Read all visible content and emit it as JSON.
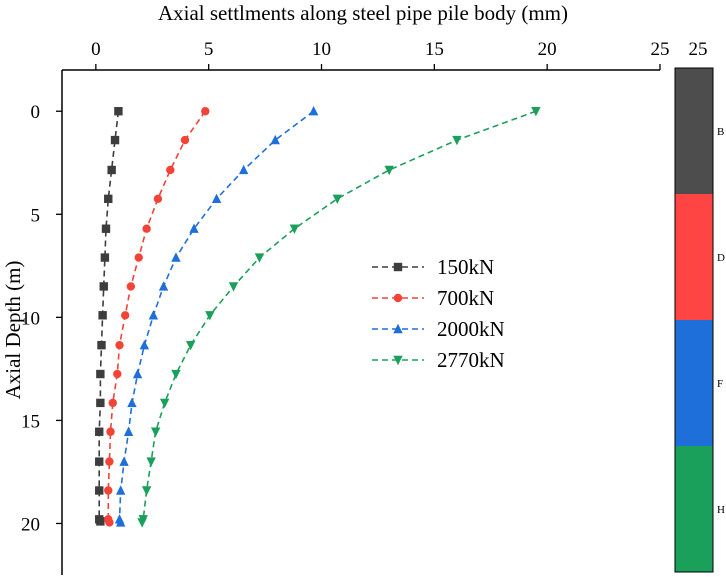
{
  "chart_data": {
    "type": "line",
    "title": "Axial settlments along steel pipe pile body (mm)",
    "xlabel": "Axial settlments along steel pipe pile body (mm)",
    "ylabel": "Axial Depth (m)",
    "x_axis_position": "top",
    "y_axis_inverted": true,
    "xlim": [
      -1.5,
      25
    ],
    "ylim": [
      22.5,
      -2
    ],
    "x_ticks": [
      0,
      5,
      10,
      15,
      20,
      25
    ],
    "y_ticks": [
      0,
      5,
      10,
      15,
      20
    ],
    "grid": false,
    "legend_position": "center-right",
    "series": [
      {
        "name": "150kN",
        "color": "#3d3d3d",
        "marker": "square",
        "points": [
          [
            1.0,
            0
          ],
          [
            0.85,
            1.4
          ],
          [
            0.7,
            2.85
          ],
          [
            0.55,
            4.25
          ],
          [
            0.45,
            5.7
          ],
          [
            0.4,
            7.1
          ],
          [
            0.35,
            8.5
          ],
          [
            0.3,
            9.9
          ],
          [
            0.25,
            11.35
          ],
          [
            0.2,
            12.75
          ],
          [
            0.2,
            14.15
          ],
          [
            0.15,
            15.55
          ],
          [
            0.15,
            17.0
          ],
          [
            0.15,
            18.4
          ],
          [
            0.15,
            19.8
          ],
          [
            0.2,
            19.9
          ]
        ]
      },
      {
        "name": "700kN",
        "color": "#f44336",
        "marker": "circle",
        "points": [
          [
            4.85,
            0
          ],
          [
            3.95,
            1.4
          ],
          [
            3.3,
            2.85
          ],
          [
            2.75,
            4.25
          ],
          [
            2.25,
            5.7
          ],
          [
            1.9,
            7.1
          ],
          [
            1.55,
            8.5
          ],
          [
            1.3,
            9.9
          ],
          [
            1.05,
            11.35
          ],
          [
            0.95,
            12.75
          ],
          [
            0.75,
            14.15
          ],
          [
            0.65,
            15.55
          ],
          [
            0.6,
            17.0
          ],
          [
            0.55,
            18.4
          ],
          [
            0.55,
            19.8
          ],
          [
            0.6,
            19.95
          ]
        ]
      },
      {
        "name": "2000kN",
        "color": "#1e6fd9",
        "marker": "triangle-up",
        "points": [
          [
            9.65,
            0
          ],
          [
            7.95,
            1.4
          ],
          [
            6.55,
            2.85
          ],
          [
            5.35,
            4.25
          ],
          [
            4.35,
            5.7
          ],
          [
            3.55,
            7.1
          ],
          [
            3.0,
            8.5
          ],
          [
            2.55,
            9.9
          ],
          [
            2.15,
            11.35
          ],
          [
            1.85,
            12.75
          ],
          [
            1.6,
            14.15
          ],
          [
            1.45,
            15.55
          ],
          [
            1.25,
            17.0
          ],
          [
            1.1,
            18.4
          ],
          [
            1.05,
            19.8
          ],
          [
            1.1,
            19.95
          ]
        ]
      },
      {
        "name": "2770kN",
        "color": "#1aa05a",
        "marker": "triangle-down",
        "points": [
          [
            19.5,
            0
          ],
          [
            16.0,
            1.4
          ],
          [
            13.0,
            2.85
          ],
          [
            10.7,
            4.25
          ],
          [
            8.8,
            5.7
          ],
          [
            7.25,
            7.1
          ],
          [
            6.1,
            8.5
          ],
          [
            5.05,
            9.9
          ],
          [
            4.2,
            11.35
          ],
          [
            3.55,
            12.75
          ],
          [
            3.05,
            14.15
          ],
          [
            2.65,
            15.55
          ],
          [
            2.45,
            17.0
          ],
          [
            2.25,
            18.4
          ],
          [
            2.1,
            19.8
          ],
          [
            2.05,
            19.95
          ]
        ]
      }
    ],
    "colorbar": {
      "top_label": "25",
      "segments": [
        {
          "label": "B",
          "color": "#4d4d4d"
        },
        {
          "label": "D",
          "color": "#ff4444"
        },
        {
          "label": "F",
          "color": "#1e6fd9"
        },
        {
          "label": "H",
          "color": "#1aa05a"
        }
      ]
    }
  }
}
